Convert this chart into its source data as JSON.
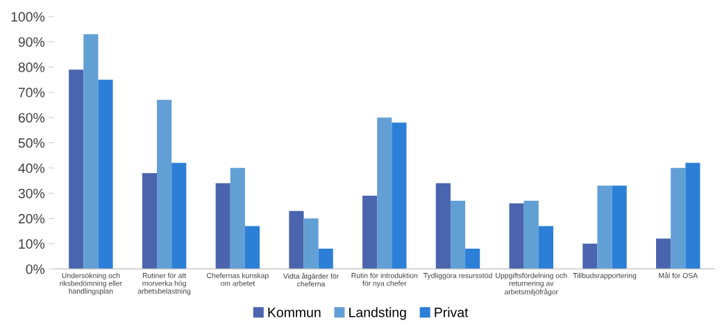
{
  "chart_data": {
    "type": "bar",
    "categories": [
      "Undersökning och\nriksbedömning eller\nhandlingsplan",
      "Rutiner för att\nmorverka hög\narbetsbelastning",
      "Chefernas kunskap\nom arbetet",
      "Vidta åtgärder för\ncheferna",
      "Rutin för introduktion\nför nya chefer",
      "Tydliggöra resursstöd",
      "Uppgiftsfördelning och\nreturnering av\narbetsmiljöfrågor",
      "Tillbudsrapportering",
      "Mål för OSA"
    ],
    "series": [
      {
        "name": "Kommun",
        "color": "#4a65ae",
        "values": [
          79,
          38,
          34,
          23,
          29,
          34,
          26,
          10,
          12
        ]
      },
      {
        "name": "Landsting",
        "color": "#629fd5",
        "values": [
          93,
          67,
          40,
          20,
          60,
          27,
          27,
          33,
          40
        ]
      },
      {
        "name": "Privat",
        "color": "#2b7fd6",
        "values": [
          75,
          42,
          17,
          8,
          58,
          8,
          17,
          33,
          42
        ]
      }
    ],
    "ylim": [
      0,
      100
    ],
    "yticks": [
      {
        "value": 0,
        "label": "0%"
      },
      {
        "value": 10,
        "label": "10%"
      },
      {
        "value": 20,
        "label": "20%"
      },
      {
        "value": 30,
        "label": "30%"
      },
      {
        "value": 40,
        "label": "40%"
      },
      {
        "value": 50,
        "label": "50%"
      },
      {
        "value": 60,
        "label": "60%"
      },
      {
        "value": 70,
        "label": "70%"
      },
      {
        "value": 80,
        "label": "80%"
      },
      {
        "value": 90,
        "label": "90%"
      },
      {
        "value": 100,
        "label": "100%"
      }
    ],
    "grid": false,
    "legend": "bottom"
  }
}
